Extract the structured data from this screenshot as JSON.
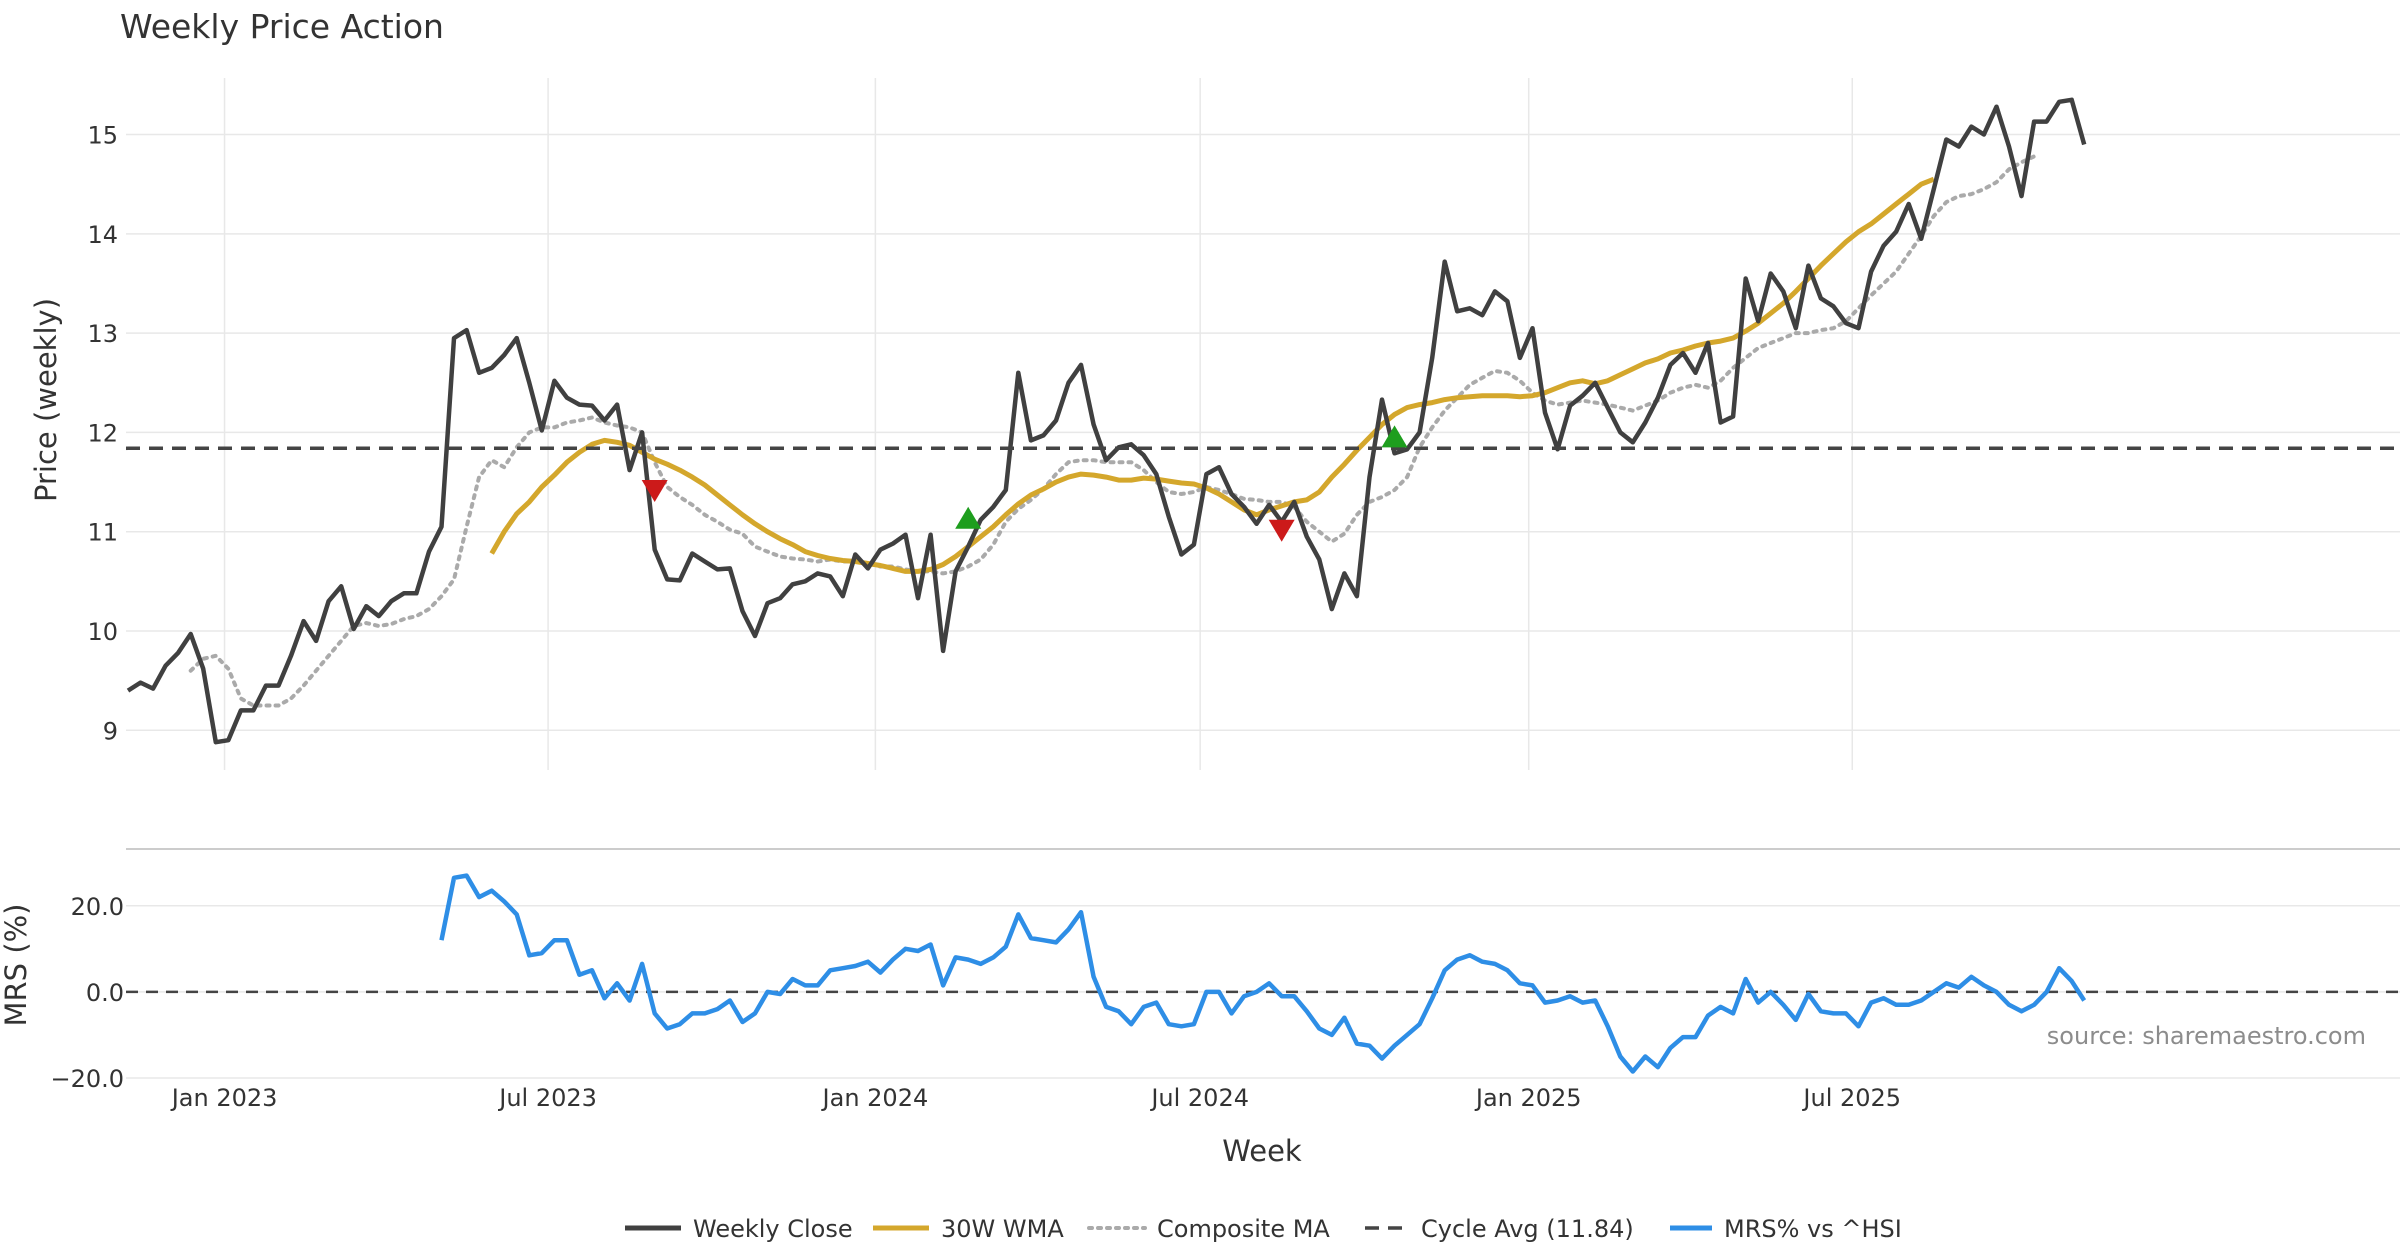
{
  "chart_data": [
    {
      "type": "line",
      "title": "Weekly Price Action",
      "xlabel": "",
      "ylabel": "Price (weekly)",
      "ylim": [
        8.6,
        15.65
      ],
      "yticks": [
        9,
        10,
        11,
        12,
        13,
        14,
        15
      ],
      "grid": true,
      "weekly_close": [
        9.4,
        9.48,
        9.42,
        9.65,
        9.78,
        9.97,
        9.62,
        8.88,
        8.9,
        9.2,
        9.2,
        9.45,
        9.45,
        9.75,
        10.1,
        9.9,
        10.3,
        10.45,
        10.02,
        10.25,
        10.15,
        10.3,
        10.38,
        10.38,
        10.8,
        11.05,
        12.95,
        13.03,
        12.6,
        12.65,
        12.78,
        12.95,
        12.5,
        12.02,
        12.52,
        12.35,
        12.28,
        12.27,
        12.12,
        12.28,
        11.62,
        12.0,
        10.82,
        10.52,
        10.51,
        10.78,
        10.7,
        10.62,
        10.63,
        10.2,
        9.95,
        10.28,
        10.33,
        10.47,
        10.5,
        10.58,
        10.55,
        10.35,
        10.77,
        10.63,
        10.82,
        10.88,
        10.97,
        10.33,
        10.97,
        9.8,
        10.6,
        10.85,
        11.12,
        11.25,
        11.42,
        12.6,
        11.92,
        11.97,
        12.12,
        12.5,
        12.68,
        12.08,
        11.72,
        11.85,
        11.88,
        11.77,
        11.58,
        11.15,
        10.77,
        10.87,
        11.58,
        11.65,
        11.38,
        11.25,
        11.08,
        11.27,
        11.1,
        11.3,
        10.95,
        10.72,
        10.22,
        10.58,
        10.35,
        11.55,
        12.33,
        11.79,
        11.83,
        12.0,
        12.75,
        13.72,
        13.22,
        13.25,
        13.18,
        13.42,
        13.32,
        12.75,
        13.05,
        12.2,
        11.83,
        12.27,
        12.37,
        12.5,
        12.25,
        12.0,
        11.9,
        12.1,
        12.35,
        12.68,
        12.8,
        12.6,
        12.9,
        12.1,
        12.16,
        13.55,
        13.12,
        13.6,
        13.42,
        13.05,
        13.68,
        13.35,
        13.27,
        13.1,
        13.05,
        13.62,
        13.88,
        14.02,
        14.3,
        13.95,
        14.45,
        14.95,
        14.88,
        15.08,
        15.0,
        15.28,
        14.88,
        14.38,
        15.13,
        15.13,
        15.33,
        15.35,
        14.9
      ],
      "composite_ma": [
        null,
        null,
        null,
        null,
        null,
        9.6,
        9.72,
        9.75,
        9.62,
        9.32,
        9.25,
        9.25,
        9.25,
        9.32,
        9.45,
        9.6,
        9.75,
        9.9,
        10.05,
        10.08,
        10.05,
        10.07,
        10.12,
        10.15,
        10.22,
        10.35,
        10.52,
        11.05,
        11.55,
        11.72,
        11.65,
        11.85,
        12.0,
        12.05,
        12.05,
        12.1,
        12.12,
        12.15,
        12.1,
        12.07,
        12.05,
        12.0,
        11.7,
        11.45,
        11.35,
        11.27,
        11.17,
        11.1,
        11.02,
        10.98,
        10.85,
        10.8,
        10.75,
        10.73,
        10.72,
        10.7,
        10.72,
        10.7,
        10.7,
        10.68,
        10.65,
        10.65,
        10.62,
        10.6,
        10.6,
        10.58,
        10.6,
        10.65,
        10.72,
        10.87,
        11.1,
        11.23,
        11.32,
        11.43,
        11.58,
        11.7,
        11.72,
        11.72,
        11.7,
        11.7,
        11.7,
        11.62,
        11.5,
        11.4,
        11.38,
        11.4,
        11.45,
        11.42,
        11.38,
        11.33,
        11.32,
        11.3,
        11.3,
        11.25,
        11.1,
        11.0,
        10.9,
        10.98,
        11.17,
        11.3,
        11.35,
        11.42,
        11.55,
        11.85,
        12.05,
        12.22,
        12.35,
        12.48,
        12.55,
        12.62,
        12.6,
        12.52,
        12.4,
        12.32,
        12.28,
        12.3,
        12.32,
        12.3,
        12.28,
        12.25,
        12.22,
        12.27,
        12.32,
        12.4,
        12.45,
        12.48,
        12.45,
        12.52,
        12.65,
        12.75,
        12.85,
        12.9,
        12.95,
        13.0,
        13.0,
        13.03,
        13.05,
        13.12,
        13.25,
        13.38,
        13.5,
        13.62,
        13.8,
        13.98,
        14.18,
        14.32,
        14.38,
        14.4,
        14.45,
        14.52,
        14.65,
        14.72,
        14.78
      ],
      "wma_30w": [
        null,
        null,
        null,
        null,
        null,
        null,
        null,
        null,
        null,
        null,
        null,
        null,
        null,
        null,
        null,
        null,
        null,
        null,
        null,
        null,
        null,
        null,
        null,
        null,
        null,
        null,
        null,
        null,
        null,
        10.78,
        11.0,
        11.18,
        11.3,
        11.45,
        11.57,
        11.7,
        11.8,
        11.88,
        11.92,
        11.9,
        11.87,
        11.8,
        11.73,
        11.68,
        11.62,
        11.55,
        11.47,
        11.37,
        11.27,
        11.17,
        11.08,
        11.0,
        10.93,
        10.87,
        10.8,
        10.76,
        10.73,
        10.71,
        10.7,
        10.68,
        10.66,
        10.63,
        10.6,
        10.6,
        10.62,
        10.67,
        10.75,
        10.85,
        10.95,
        11.05,
        11.17,
        11.28,
        11.37,
        11.43,
        11.5,
        11.55,
        11.58,
        11.57,
        11.55,
        11.52,
        11.52,
        11.54,
        11.53,
        11.51,
        11.49,
        11.48,
        11.44,
        11.38,
        11.3,
        11.22,
        11.17,
        11.22,
        11.26,
        11.3,
        11.32,
        11.4,
        11.55,
        11.68,
        11.82,
        11.95,
        12.08,
        12.18,
        12.25,
        12.28,
        12.3,
        12.33,
        12.35,
        12.36,
        12.37,
        12.37,
        12.37,
        12.36,
        12.37,
        12.4,
        12.45,
        12.5,
        12.52,
        12.49,
        12.52,
        12.58,
        12.64,
        12.7,
        12.74,
        12.8,
        12.83,
        12.87,
        12.9,
        12.92,
        12.95,
        13.02,
        13.1,
        13.2,
        13.3,
        13.42,
        13.55,
        13.68,
        13.8,
        13.92,
        14.02,
        14.1,
        14.2,
        14.3,
        14.4,
        14.5,
        14.55
      ],
      "cycle_avg": 11.84,
      "signals": [
        {
          "type": "sell",
          "week": 42,
          "value": 11.42
        },
        {
          "type": "buy",
          "week": 67,
          "value": 11.13
        },
        {
          "type": "sell",
          "week": 92,
          "value": 11.02
        },
        {
          "type": "buy",
          "week": 101,
          "value": 11.95
        }
      ]
    },
    {
      "type": "line",
      "title": "",
      "xlabel": "Week",
      "ylabel": "MRS (%)",
      "ylim": [
        -20.0,
        29.0
      ],
      "yticks": [
        20.0,
        0.0,
        -20.0
      ],
      "ytick_labels": [
        "20.0",
        "0.0",
        "−20.0"
      ],
      "x_ticks": [
        {
          "label": "Jan 2023",
          "week": 7.7
        },
        {
          "label": "Jul 2023",
          "week": 33.5
        },
        {
          "label": "Jan 2024",
          "week": 59.6
        },
        {
          "label": "Jul 2024",
          "week": 85.5
        },
        {
          "label": "Jan 2025",
          "week": 111.7
        },
        {
          "label": "Jul 2025",
          "week": 137.5
        }
      ],
      "series": [
        {
          "name": "MRS% vs ^HSI",
          "start_week": 25,
          "values": [
            12,
            26.5,
            27,
            22,
            23.5,
            21,
            18,
            8.5,
            9,
            12,
            12,
            4,
            5,
            -1.5,
            2,
            -2,
            6.5,
            -5,
            -8.5,
            -7.5,
            -5,
            -5,
            -4,
            -2,
            -7,
            -5,
            0,
            -0.5,
            3,
            1.5,
            1.5,
            5,
            5.5,
            6,
            7,
            4.5,
            7.5,
            10,
            9.5,
            11,
            1.5,
            8,
            7.5,
            6.5,
            8,
            10.5,
            18,
            12.5,
            12,
            11.5,
            14.5,
            18.5,
            3.5,
            -3.5,
            -4.5,
            -7.5,
            -3.5,
            -2.5,
            -7.5,
            -8,
            -7.5,
            0,
            0,
            -5,
            -1,
            0,
            2,
            -1,
            -1,
            -4.5,
            -8.5,
            -10,
            -6,
            -12,
            -12.5,
            -15.5,
            -12.5,
            -10,
            -7.5,
            -1.5,
            5,
            7.5,
            8.5,
            7,
            6.5,
            5,
            2,
            1.5,
            -2.5,
            -2,
            -1,
            -2.5,
            -2,
            -8,
            -15,
            -18.5,
            -15,
            -17.5,
            -13,
            -10.5,
            -10.5,
            -5.5,
            -3.5,
            -5,
            3,
            -2.5,
            0,
            -3,
            -6.5,
            -0.5,
            -4.5,
            -5,
            -5,
            -8,
            -2.5,
            -1.5,
            -3,
            -3,
            -2,
            0,
            2,
            1,
            3.5,
            1.5,
            0,
            -3,
            -4.5,
            -3,
            0,
            5.5,
            2.5,
            -2
          ]
        }
      ],
      "cycle_baseline": 0.0,
      "source": "source: sharemaestro.com"
    }
  ],
  "legend": {
    "weekly_close": "Weekly Close",
    "wma": "30W WMA",
    "composite": "Composite MA",
    "cycle": "Cycle Avg (11.84)",
    "mrs": "MRS% vs ^HSI"
  },
  "colors": {
    "close": "#404040",
    "wma": "#d4a72c",
    "composite": "#aaaaaa",
    "cycle": "#444444",
    "mrs": "#2e8ee6",
    "buy": "#1e9e1e",
    "sell": "#cc1a1a",
    "grid": "#e8e8e8"
  }
}
